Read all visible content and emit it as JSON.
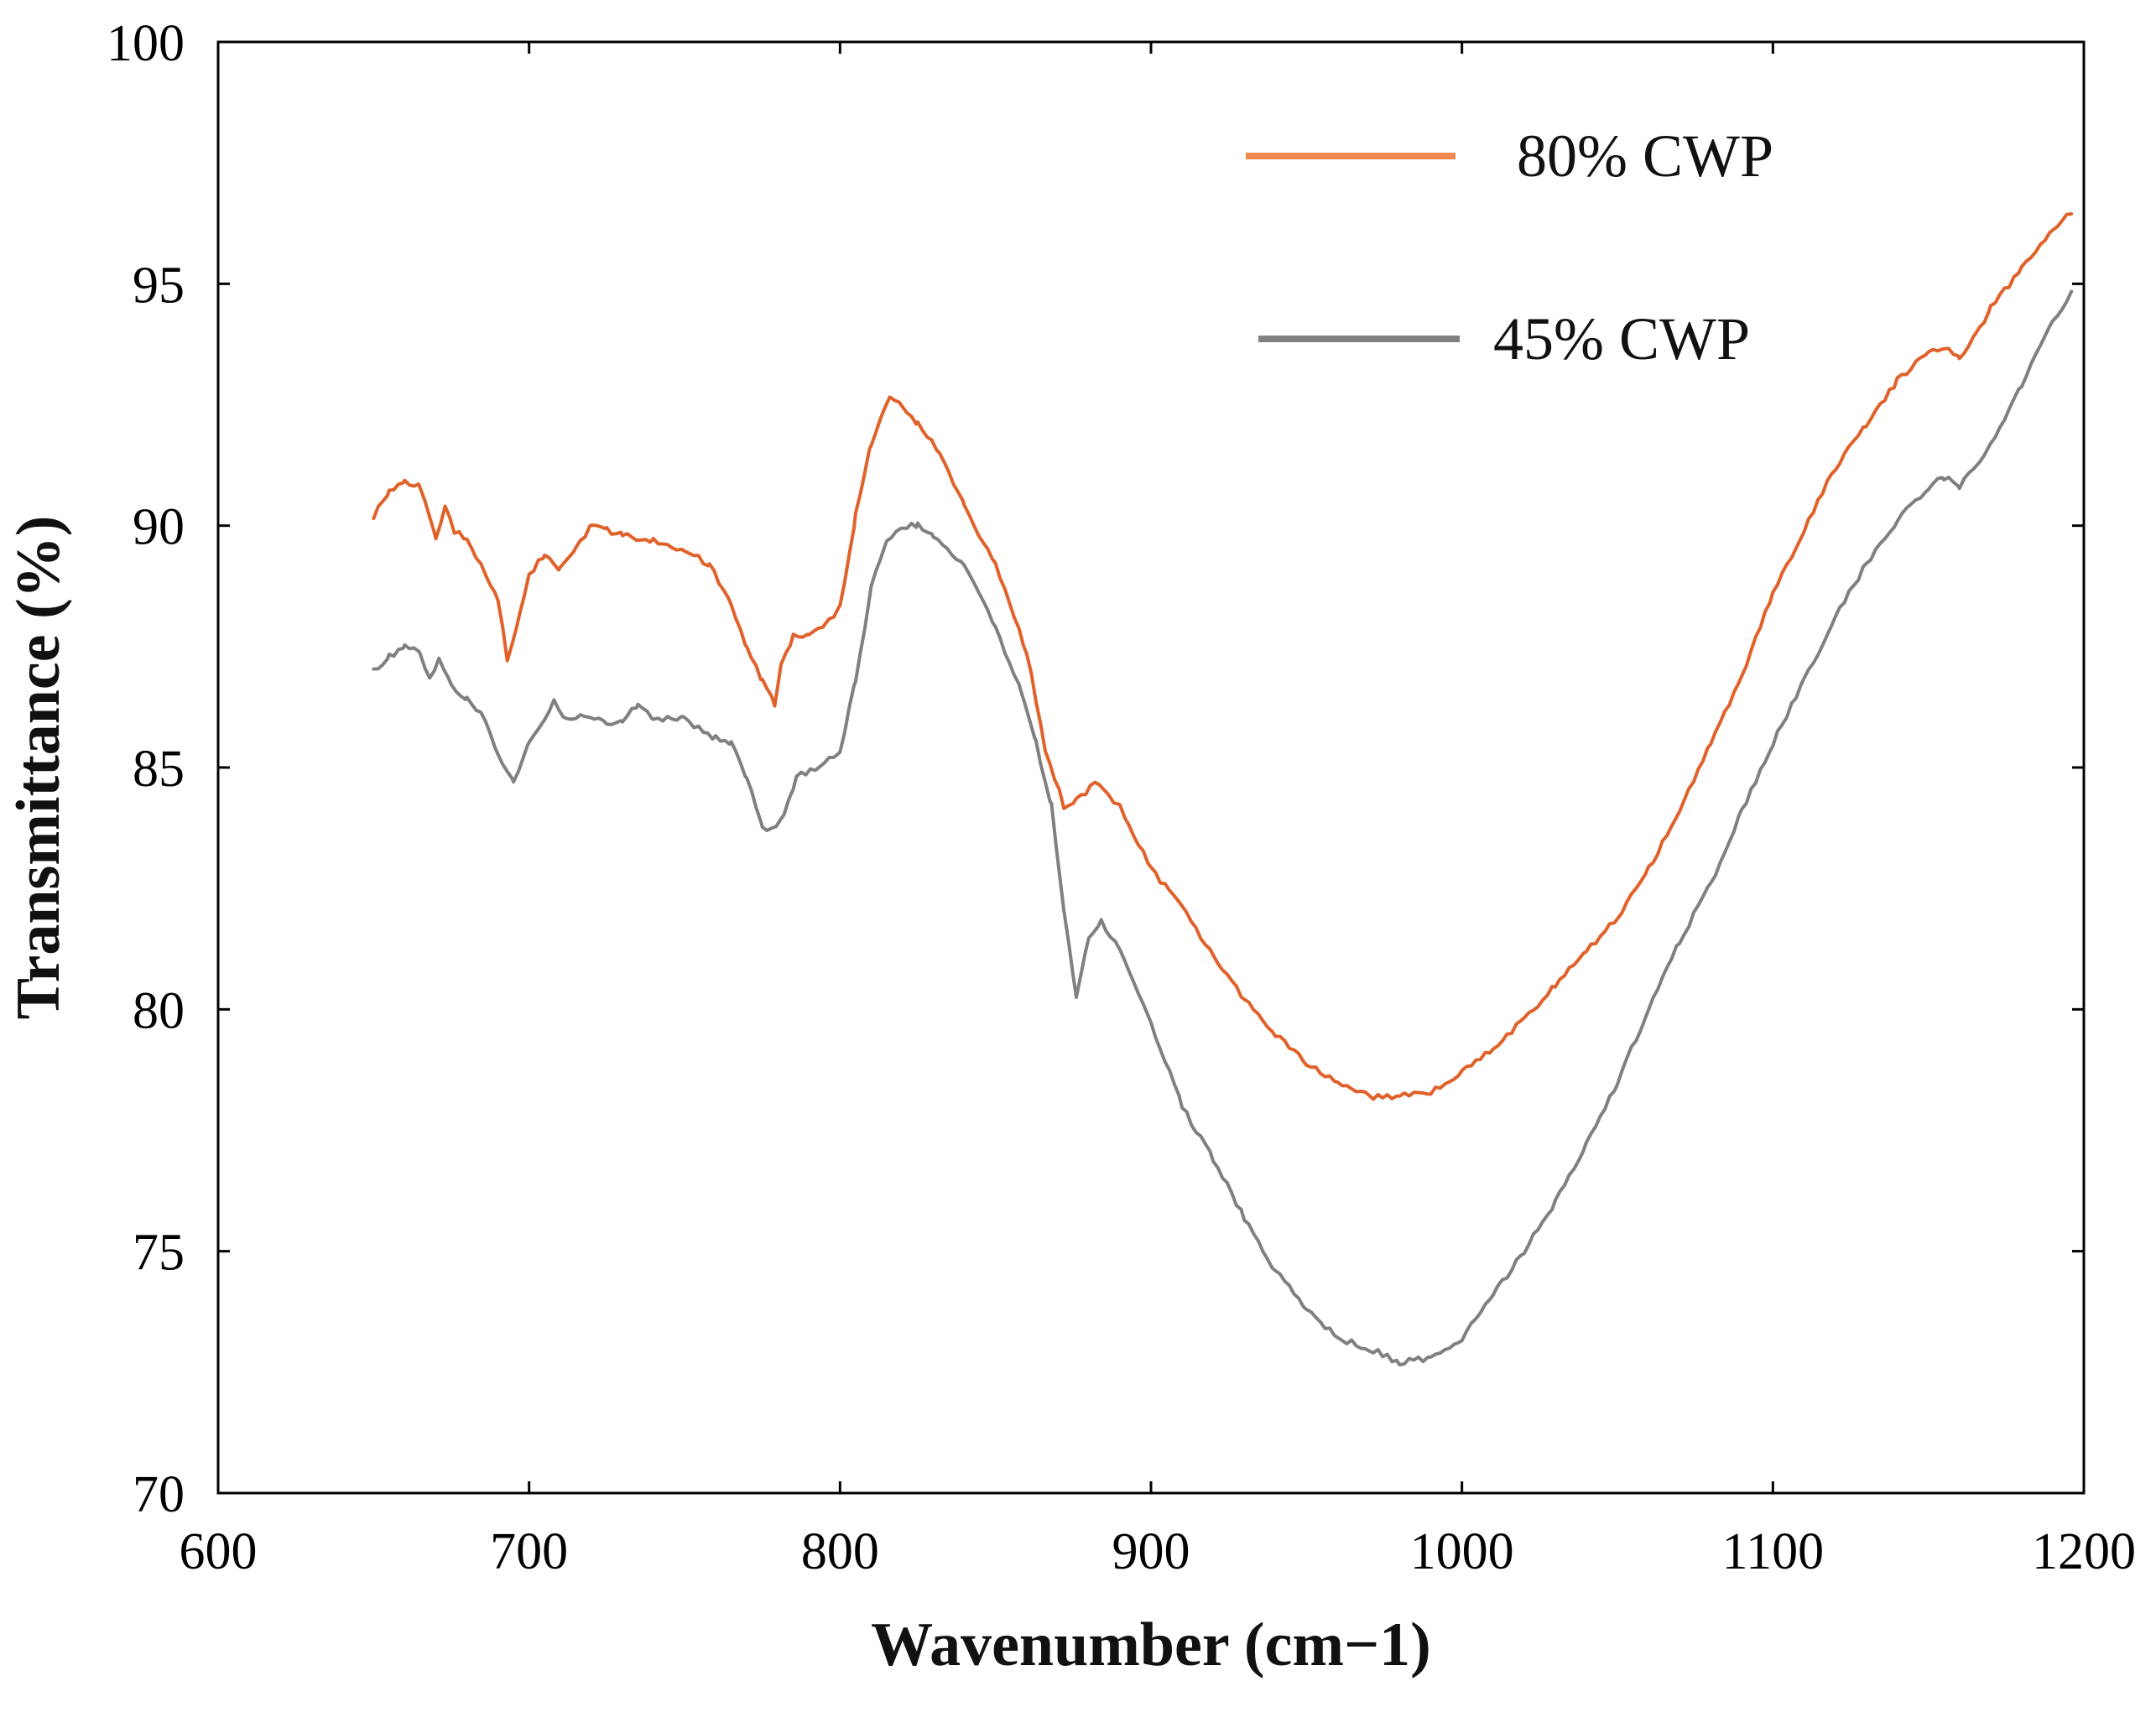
{
  "chart_data": {
    "type": "line",
    "title": "",
    "xlabel": "Wavenumber (cm−1)",
    "ylabel": "Transmittance (%)",
    "xlim": [
      600,
      1200
    ],
    "ylim": [
      70,
      100
    ],
    "x_ticks": [
      600,
      700,
      800,
      900,
      1000,
      1100,
      1200
    ],
    "y_ticks": [
      70,
      75,
      80,
      85,
      90,
      95,
      100
    ],
    "grid": false,
    "legend_position": "top-right",
    "series": [
      {
        "name": "80% CWP",
        "color": "#e0622a",
        "legend_color": "#f08a52",
        "x": [
          650,
          655,
          660,
          665,
          670,
          673,
          676,
          680,
          686,
          690,
          693,
          697,
          700,
          705,
          710,
          715,
          720,
          725,
          730,
          740,
          750,
          758,
          765,
          770,
          775,
          779,
          781,
          785,
          790,
          795,
          800,
          805,
          810,
          816,
          820,
          825,
          832,
          840,
          850,
          860,
          866,
          872,
          876,
          882,
          890,
          900,
          910,
          920,
          930,
          940,
          950,
          960,
          970,
          980,
          990,
          1000,
          1010,
          1020,
          1030,
          1040,
          1050,
          1060,
          1070,
          1080,
          1090,
          1100,
          1110,
          1120,
          1130,
          1140,
          1150,
          1155,
          1160,
          1165,
          1170,
          1180,
          1190,
          1196
        ],
        "values": [
          90.2,
          90.7,
          90.9,
          90.8,
          89.7,
          90.4,
          89.9,
          89.7,
          89.0,
          88.5,
          87.2,
          88.2,
          89.0,
          89.4,
          89.1,
          89.5,
          90.0,
          89.9,
          89.8,
          89.7,
          89.5,
          89.2,
          88.4,
          87.5,
          86.8,
          86.3,
          87.1,
          87.7,
          87.7,
          87.9,
          88.3,
          90.2,
          91.7,
          92.7,
          92.5,
          92.1,
          91.5,
          90.4,
          89.2,
          87.4,
          85.4,
          84.2,
          84.3,
          84.7,
          84.2,
          82.9,
          82.1,
          81.1,
          80.2,
          79.5,
          78.9,
          78.5,
          78.2,
          78.2,
          78.3,
          78.7,
          79.2,
          79.8,
          80.5,
          81.2,
          81.9,
          82.9,
          84.1,
          85.5,
          86.9,
          88.6,
          89.9,
          91.2,
          92.1,
          93.0,
          93.6,
          93.7,
          93.5,
          93.9,
          94.5,
          95.3,
          96.1,
          96.5
        ]
      },
      {
        "name": "45% CWP",
        "color": "#808080",
        "legend_color": "#808080",
        "x": [
          650,
          655,
          660,
          665,
          668,
          671,
          675,
          680,
          686,
          690,
          695,
          700,
          705,
          708,
          712,
          718,
          725,
          730,
          735,
          740,
          750,
          760,
          765,
          770,
          775,
          778,
          782,
          786,
          792,
          800,
          805,
          810,
          815,
          820,
          825,
          830,
          840,
          850,
          858,
          863,
          868,
          872,
          876,
          880,
          884,
          890,
          900,
          910,
          920,
          930,
          940,
          950,
          960,
          970,
          980,
          990,
          1000,
          1010,
          1020,
          1030,
          1040,
          1050,
          1060,
          1070,
          1080,
          1090,
          1100,
          1110,
          1120,
          1130,
          1140,
          1150,
          1155,
          1160,
          1165,
          1170,
          1180,
          1190,
          1196
        ],
        "values": [
          87.0,
          87.3,
          87.5,
          87.4,
          86.8,
          87.3,
          86.7,
          86.4,
          86.0,
          85.3,
          84.7,
          85.5,
          86.0,
          86.4,
          86.0,
          86.1,
          85.9,
          86.0,
          86.3,
          86.0,
          86.0,
          85.6,
          85.5,
          84.8,
          83.8,
          83.7,
          84.0,
          84.8,
          85.0,
          85.3,
          86.8,
          88.7,
          89.7,
          90.0,
          90.0,
          89.8,
          89.2,
          87.9,
          86.6,
          85.5,
          84.2,
          82.0,
          80.3,
          81.5,
          81.8,
          81.2,
          79.7,
          78.0,
          76.9,
          75.7,
          74.6,
          73.8,
          73.2,
          73.0,
          72.7,
          72.8,
          73.2,
          74.1,
          75.0,
          76.0,
          77.2,
          78.5,
          80.0,
          81.4,
          82.6,
          84.1,
          85.5,
          86.8,
          88.1,
          89.2,
          90.1,
          90.8,
          91.0,
          90.8,
          91.2,
          91.7,
          92.9,
          94.2,
          94.8
        ]
      }
    ]
  }
}
